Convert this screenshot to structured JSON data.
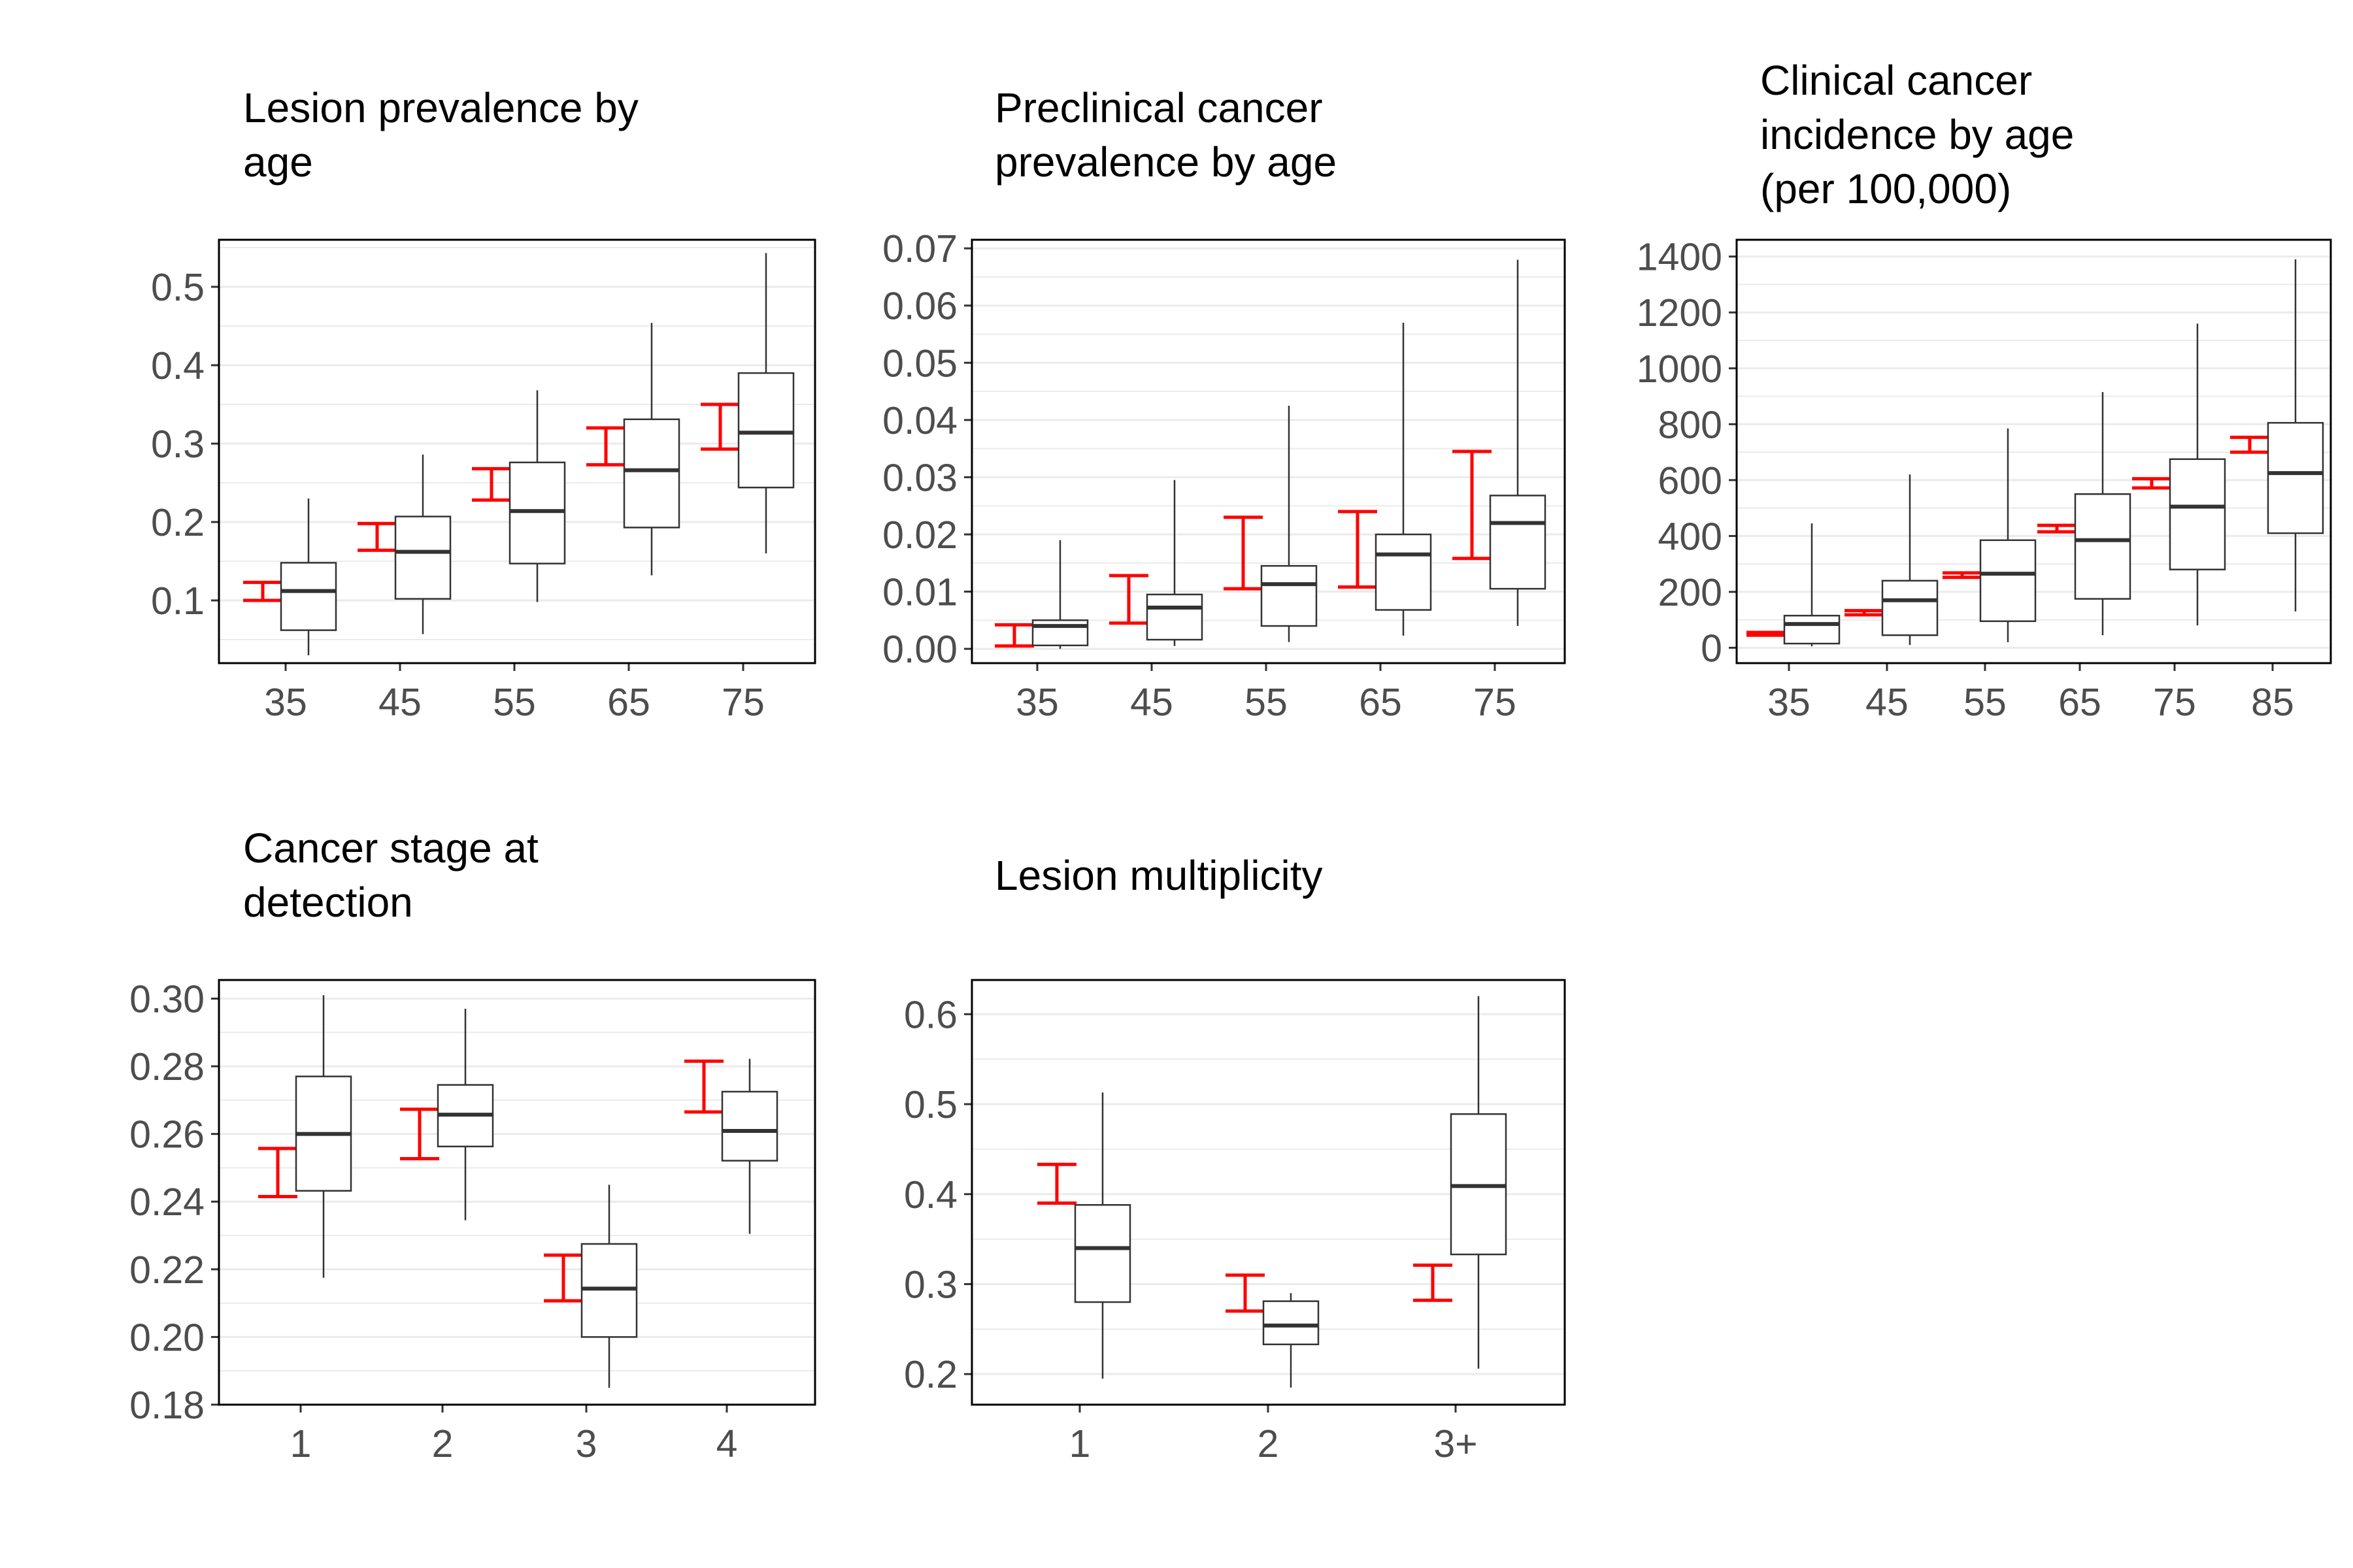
{
  "chart_data": [
    {
      "type": "boxplot",
      "title_lines": [
        "Lesion prevalence by",
        "age"
      ],
      "categories": [
        "35",
        "45",
        "55",
        "65",
        "75"
      ],
      "ylim": [
        0.02,
        0.56
      ],
      "yticks": [
        0.1,
        0.2,
        0.3,
        0.4,
        0.5
      ],
      "ytick_labels": [
        "0.1",
        "0.2",
        "0.3",
        "0.4",
        "0.5"
      ],
      "grid": true,
      "targets": [
        {
          "category": "35",
          "low": 0.1,
          "high": 0.123
        },
        {
          "category": "45",
          "low": 0.164,
          "high": 0.198
        },
        {
          "category": "55",
          "low": 0.228,
          "high": 0.268
        },
        {
          "category": "65",
          "low": 0.273,
          "high": 0.32
        },
        {
          "category": "75",
          "low": 0.293,
          "high": 0.35
        }
      ],
      "boxes": [
        {
          "category": "35",
          "min": 0.03,
          "q1": 0.062,
          "median": 0.112,
          "q3": 0.148,
          "max": 0.23
        },
        {
          "category": "45",
          "min": 0.057,
          "q1": 0.102,
          "median": 0.162,
          "q3": 0.207,
          "max": 0.286
        },
        {
          "category": "55",
          "min": 0.098,
          "q1": 0.147,
          "median": 0.214,
          "q3": 0.276,
          "max": 0.368
        },
        {
          "category": "65",
          "min": 0.132,
          "q1": 0.193,
          "median": 0.266,
          "q3": 0.331,
          "max": 0.454
        },
        {
          "category": "75",
          "min": 0.16,
          "q1": 0.244,
          "median": 0.314,
          "q3": 0.39,
          "max": 0.543
        }
      ]
    },
    {
      "type": "boxplot",
      "title_lines": [
        "Preclinical cancer",
        "prevalence by age"
      ],
      "categories": [
        "35",
        "45",
        "55",
        "65",
        "75"
      ],
      "ylim": [
        -0.0025,
        0.0715
      ],
      "yticks": [
        0.0,
        0.01,
        0.02,
        0.03,
        0.04,
        0.05,
        0.06,
        0.07
      ],
      "ytick_labels": [
        "0.00",
        "0.01",
        "0.02",
        "0.03",
        "0.04",
        "0.05",
        "0.06",
        "0.07"
      ],
      "grid": true,
      "targets": [
        {
          "category": "35",
          "low": 0.0005,
          "high": 0.0042
        },
        {
          "category": "45",
          "low": 0.0045,
          "high": 0.0128
        },
        {
          "category": "55",
          "low": 0.0105,
          "high": 0.023
        },
        {
          "category": "65",
          "low": 0.0108,
          "high": 0.024
        },
        {
          "category": "75",
          "low": 0.0158,
          "high": 0.0345
        }
      ],
      "boxes": [
        {
          "category": "35",
          "min": 0.0,
          "q1": 0.0006,
          "median": 0.004,
          "q3": 0.005,
          "max": 0.019
        },
        {
          "category": "45",
          "min": 0.0005,
          "q1": 0.0016,
          "median": 0.0072,
          "q3": 0.0095,
          "max": 0.0295
        },
        {
          "category": "55",
          "min": 0.0012,
          "q1": 0.004,
          "median": 0.0113,
          "q3": 0.0145,
          "max": 0.0425
        },
        {
          "category": "65",
          "min": 0.0023,
          "q1": 0.0068,
          "median": 0.0165,
          "q3": 0.02,
          "max": 0.057
        },
        {
          "category": "75",
          "min": 0.004,
          "q1": 0.0105,
          "median": 0.022,
          "q3": 0.0268,
          "max": 0.068
        }
      ]
    },
    {
      "type": "boxplot",
      "title_lines": [
        "Clinical cancer",
        "incidence by age",
        "(per 100,000)"
      ],
      "categories": [
        "35",
        "45",
        "55",
        "65",
        "75",
        "85"
      ],
      "ylim": [
        -55,
        1460
      ],
      "yticks": [
        0,
        200,
        400,
        600,
        800,
        1000,
        1200,
        1400
      ],
      "ytick_labels": [
        "0",
        "200",
        "400",
        "600",
        "800",
        "1000",
        "1200",
        "1400"
      ],
      "grid": true,
      "targets": [
        {
          "category": "35",
          "low": 45,
          "high": 55
        },
        {
          "category": "45",
          "low": 118,
          "high": 133
        },
        {
          "category": "55",
          "low": 252,
          "high": 268
        },
        {
          "category": "65",
          "low": 415,
          "high": 438
        },
        {
          "category": "75",
          "low": 572,
          "high": 605
        },
        {
          "category": "85",
          "low": 700,
          "high": 753
        }
      ],
      "boxes": [
        {
          "category": "35",
          "min": 5,
          "q1": 15,
          "median": 85,
          "q3": 115,
          "max": 445
        },
        {
          "category": "45",
          "min": 10,
          "q1": 45,
          "median": 170,
          "q3": 240,
          "max": 620
        },
        {
          "category": "55",
          "min": 20,
          "q1": 95,
          "median": 265,
          "q3": 385,
          "max": 785
        },
        {
          "category": "65",
          "min": 45,
          "q1": 175,
          "median": 385,
          "q3": 550,
          "max": 915
        },
        {
          "category": "75",
          "min": 80,
          "q1": 280,
          "median": 505,
          "q3": 675,
          "max": 1160
        },
        {
          "category": "85",
          "min": 130,
          "q1": 410,
          "median": 625,
          "q3": 805,
          "max": 1390
        }
      ]
    },
    {
      "type": "boxplot",
      "title_lines": [
        "Cancer stage at",
        "detection"
      ],
      "categories": [
        "1",
        "2",
        "3",
        "4"
      ],
      "ylim": [
        0.18,
        0.3055
      ],
      "yticks": [
        0.18,
        0.2,
        0.22,
        0.24,
        0.26,
        0.28,
        0.3
      ],
      "ytick_labels": [
        "0.18",
        "0.20",
        "0.22",
        "0.24",
        "0.26",
        "0.28",
        "0.30"
      ],
      "grid": true,
      "targets": [
        {
          "category": "1",
          "low": 0.2415,
          "high": 0.2557
        },
        {
          "category": "2",
          "low": 0.2527,
          "high": 0.2673
        },
        {
          "category": "3",
          "low": 0.2107,
          "high": 0.2242
        },
        {
          "category": "4",
          "low": 0.2665,
          "high": 0.2815
        }
      ],
      "boxes": [
        {
          "category": "1",
          "min": 0.2175,
          "q1": 0.2432,
          "median": 0.26,
          "q3": 0.277,
          "max": 0.301
        },
        {
          "category": "2",
          "min": 0.2345,
          "q1": 0.2563,
          "median": 0.2657,
          "q3": 0.2745,
          "max": 0.297
        },
        {
          "category": "3",
          "min": 0.185,
          "q1": 0.2,
          "median": 0.2143,
          "q3": 0.2275,
          "max": 0.245
        },
        {
          "category": "4",
          "min": 0.2305,
          "q1": 0.2521,
          "median": 0.2609,
          "q3": 0.2725,
          "max": 0.2822
        }
      ]
    },
    {
      "type": "boxplot",
      "title_lines": [
        "Lesion multiplicity"
      ],
      "categories": [
        "1",
        "2",
        "3+"
      ],
      "ylim": [
        0.166,
        0.638
      ],
      "yticks": [
        0.2,
        0.3,
        0.4,
        0.5,
        0.6
      ],
      "ytick_labels": [
        "0.2",
        "0.3",
        "0.4",
        "0.5",
        "0.6"
      ],
      "grid": true,
      "targets": [
        {
          "category": "1",
          "low": 0.39,
          "high": 0.433
        },
        {
          "category": "2",
          "low": 0.27,
          "high": 0.31
        },
        {
          "category": "3+",
          "low": 0.282,
          "high": 0.321
        }
      ],
      "boxes": [
        {
          "category": "1",
          "min": 0.195,
          "q1": 0.28,
          "median": 0.34,
          "q3": 0.388,
          "max": 0.513
        },
        {
          "category": "2",
          "min": 0.185,
          "q1": 0.233,
          "median": 0.254,
          "q3": 0.281,
          "max": 0.29
        },
        {
          "category": "3+",
          "min": 0.206,
          "q1": 0.333,
          "median": 0.409,
          "q3": 0.489,
          "max": 0.62
        }
      ]
    }
  ],
  "style": {
    "target_color": "#ff0000",
    "box_color": "#333333",
    "grid_color": "#ebebeb",
    "tick_label_color": "#4d4d4d",
    "panel_border_color": "#000000"
  }
}
